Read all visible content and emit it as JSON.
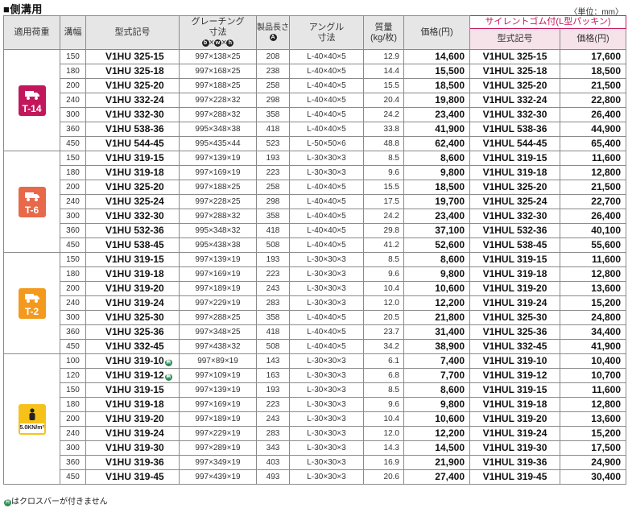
{
  "title": "■側溝用",
  "unit_note": "〈単位：mm〉",
  "headers": {
    "load": "適用荷重",
    "width": "溝幅",
    "model": "型式記号",
    "grating": "グレーチング寸法",
    "length": "製品長さ",
    "length_mark": "A",
    "angle": "アングル寸法",
    "weight": "質量(kg/枚)",
    "price": "価格(円)",
    "silent_group": "サイレントゴム付(L型パッキン)",
    "silent_model": "型式記号",
    "silent_price": "価格(円)",
    "dim_marks": [
      "b",
      "w",
      "h"
    ]
  },
  "groups": [
    {
      "load_label": "T-14",
      "color": "#c2185b",
      "rows": [
        {
          "w": "150",
          "model": "V1HU 325-15",
          "grating": "997×138×25",
          "len": "208",
          "angle": "L-40×40×5",
          "kg": "12.9",
          "price": "14,600",
          "smodel": "V1HUL 325-15",
          "sprice": "17,600"
        },
        {
          "w": "180",
          "model": "V1HU 325-18",
          "grating": "997×168×25",
          "len": "238",
          "angle": "L-40×40×5",
          "kg": "14.4",
          "price": "15,500",
          "smodel": "V1HUL 325-18",
          "sprice": "18,500"
        },
        {
          "w": "200",
          "model": "V1HU 325-20",
          "grating": "997×188×25",
          "len": "258",
          "angle": "L-40×40×5",
          "kg": "15.5",
          "price": "18,500",
          "smodel": "V1HUL 325-20",
          "sprice": "21,500"
        },
        {
          "w": "240",
          "model": "V1HU 332-24",
          "grating": "997×228×32",
          "len": "298",
          "angle": "L-40×40×5",
          "kg": "20.4",
          "price": "19,800",
          "smodel": "V1HUL 332-24",
          "sprice": "22,800"
        },
        {
          "w": "300",
          "model": "V1HU 332-30",
          "grating": "997×288×32",
          "len": "358",
          "angle": "L-40×40×5",
          "kg": "24.2",
          "price": "23,400",
          "smodel": "V1HUL 332-30",
          "sprice": "26,400"
        },
        {
          "w": "360",
          "model": "V1HU 538-36",
          "grating": "995×348×38",
          "len": "418",
          "angle": "L-40×40×5",
          "kg": "33.8",
          "price": "41,900",
          "smodel": "V1HUL 538-36",
          "sprice": "44,900"
        },
        {
          "w": "450",
          "model": "V1HU 544-45",
          "grating": "995×435×44",
          "len": "523",
          "angle": "L-50×50×6",
          "kg": "48.8",
          "price": "62,400",
          "smodel": "V1HUL 544-45",
          "sprice": "65,400"
        }
      ]
    },
    {
      "load_label": "T-6",
      "color": "#e8684a",
      "rows": [
        {
          "w": "150",
          "model": "V1HU 319-15",
          "grating": "997×139×19",
          "len": "193",
          "angle": "L-30×30×3",
          "kg": "8.5",
          "price": "8,600",
          "smodel": "V1HUL 319-15",
          "sprice": "11,600"
        },
        {
          "w": "180",
          "model": "V1HU 319-18",
          "grating": "997×169×19",
          "len": "223",
          "angle": "L-30×30×3",
          "kg": "9.6",
          "price": "9,800",
          "smodel": "V1HUL 319-18",
          "sprice": "12,800"
        },
        {
          "w": "200",
          "model": "V1HU 325-20",
          "grating": "997×188×25",
          "len": "258",
          "angle": "L-40×40×5",
          "kg": "15.5",
          "price": "18,500",
          "smodel": "V1HUL 325-20",
          "sprice": "21,500"
        },
        {
          "w": "240",
          "model": "V1HU 325-24",
          "grating": "997×228×25",
          "len": "298",
          "angle": "L-40×40×5",
          "kg": "17.5",
          "price": "19,700",
          "smodel": "V1HUL 325-24",
          "sprice": "22,700"
        },
        {
          "w": "300",
          "model": "V1HU 332-30",
          "grating": "997×288×32",
          "len": "358",
          "angle": "L-40×40×5",
          "kg": "24.2",
          "price": "23,400",
          "smodel": "V1HUL 332-30",
          "sprice": "26,400"
        },
        {
          "w": "360",
          "model": "V1HU 532-36",
          "grating": "995×348×32",
          "len": "418",
          "angle": "L-40×40×5",
          "kg": "29.8",
          "price": "37,100",
          "smodel": "V1HUL 532-36",
          "sprice": "40,100"
        },
        {
          "w": "450",
          "model": "V1HU 538-45",
          "grating": "995×438×38",
          "len": "508",
          "angle": "L-40×40×5",
          "kg": "41.2",
          "price": "52,600",
          "smodel": "V1HUL 538-45",
          "sprice": "55,600"
        }
      ]
    },
    {
      "load_label": "T-2",
      "color": "#f39a1e",
      "rows": [
        {
          "w": "150",
          "model": "V1HU 319-15",
          "grating": "997×139×19",
          "len": "193",
          "angle": "L-30×30×3",
          "kg": "8.5",
          "price": "8,600",
          "smodel": "V1HUL 319-15",
          "sprice": "11,600"
        },
        {
          "w": "180",
          "model": "V1HU 319-18",
          "grating": "997×169×19",
          "len": "223",
          "angle": "L-30×30×3",
          "kg": "9.6",
          "price": "9,800",
          "smodel": "V1HUL 319-18",
          "sprice": "12,800"
        },
        {
          "w": "200",
          "model": "V1HU 319-20",
          "grating": "997×189×19",
          "len": "243",
          "angle": "L-30×30×3",
          "kg": "10.4",
          "price": "10,600",
          "smodel": "V1HUL 319-20",
          "sprice": "13,600"
        },
        {
          "w": "240",
          "model": "V1HU 319-24",
          "grating": "997×229×19",
          "len": "283",
          "angle": "L-30×30×3",
          "kg": "12.0",
          "price": "12,200",
          "smodel": "V1HUL 319-24",
          "sprice": "15,200"
        },
        {
          "w": "300",
          "model": "V1HU 325-30",
          "grating": "997×288×25",
          "len": "358",
          "angle": "L-40×40×5",
          "kg": "20.5",
          "price": "21,800",
          "smodel": "V1HUL 325-30",
          "sprice": "24,800"
        },
        {
          "w": "360",
          "model": "V1HU 325-36",
          "grating": "997×348×25",
          "len": "418",
          "angle": "L-40×40×5",
          "kg": "23.7",
          "price": "31,400",
          "smodel": "V1HUL 325-36",
          "sprice": "34,400"
        },
        {
          "w": "450",
          "model": "V1HU 332-45",
          "grating": "997×438×32",
          "len": "508",
          "angle": "L-40×40×5",
          "kg": "34.2",
          "price": "38,900",
          "smodel": "V1HUL 332-45",
          "sprice": "41,900"
        }
      ]
    },
    {
      "load_label": "5.0KN/m²",
      "color": "#f6c21a",
      "rows": [
        {
          "w": "100",
          "model": "V1HU 319-10",
          "nc": true,
          "grating": "997×89×19",
          "len": "143",
          "angle": "L-30×30×3",
          "kg": "6.1",
          "price": "7,400",
          "smodel": "V1HUL 319-10",
          "sprice": "10,400"
        },
        {
          "w": "120",
          "model": "V1HU 319-12",
          "nc": true,
          "grating": "997×109×19",
          "len": "163",
          "angle": "L-30×30×3",
          "kg": "6.8",
          "price": "7,700",
          "smodel": "V1HUL 319-12",
          "sprice": "10,700"
        },
        {
          "w": "150",
          "model": "V1HU 319-15",
          "grating": "997×139×19",
          "len": "193",
          "angle": "L-30×30×3",
          "kg": "8.5",
          "price": "8,600",
          "smodel": "V1HUL 319-15",
          "sprice": "11,600"
        },
        {
          "w": "180",
          "model": "V1HU 319-18",
          "grating": "997×169×19",
          "len": "223",
          "angle": "L-30×30×3",
          "kg": "9.6",
          "price": "9,800",
          "smodel": "V1HUL 319-18",
          "sprice": "12,800"
        },
        {
          "w": "200",
          "model": "V1HU 319-20",
          "grating": "997×189×19",
          "len": "243",
          "angle": "L-30×30×3",
          "kg": "10.4",
          "price": "10,600",
          "smodel": "V1HUL 319-20",
          "sprice": "13,600"
        },
        {
          "w": "240",
          "model": "V1HU 319-24",
          "grating": "997×229×19",
          "len": "283",
          "angle": "L-30×30×3",
          "kg": "12.0",
          "price": "12,200",
          "smodel": "V1HUL 319-24",
          "sprice": "15,200"
        },
        {
          "w": "300",
          "model": "V1HU 319-30",
          "grating": "997×289×19",
          "len": "343",
          "angle": "L-30×30×3",
          "kg": "14.3",
          "price": "14,500",
          "smodel": "V1HUL 319-30",
          "sprice": "17,500"
        },
        {
          "w": "360",
          "model": "V1HU 319-36",
          "grating": "997×349×19",
          "len": "403",
          "angle": "L-30×30×3",
          "kg": "16.9",
          "price": "21,900",
          "smodel": "V1HUL 319-36",
          "sprice": "24,900"
        },
        {
          "w": "450",
          "model": "V1HU 319-45",
          "grating": "997×439×19",
          "len": "493",
          "angle": "L-30×30×3",
          "kg": "20.6",
          "price": "27,400",
          "smodel": "V1HUL 319-45",
          "sprice": "30,400"
        }
      ]
    }
  ],
  "footnote_mark": "無",
  "footnote": "はクロスバーが付きません"
}
